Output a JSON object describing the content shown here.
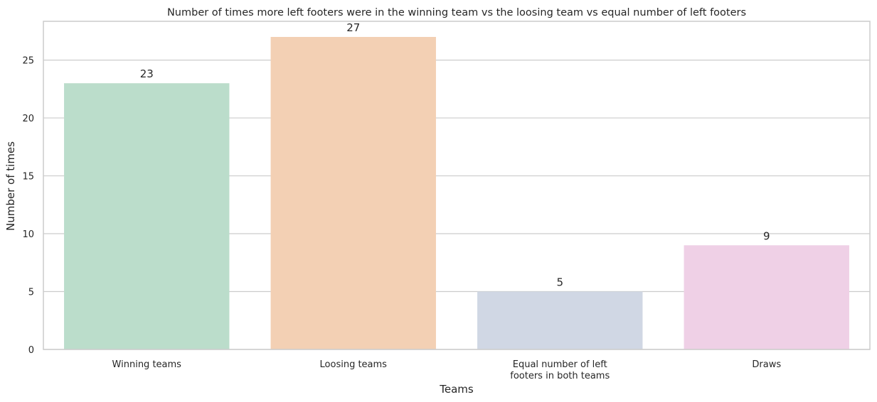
{
  "chart_data": {
    "type": "bar",
    "title": "Number of times more left footers were in the winning team vs the loosing team vs equal number of left footers",
    "xlabel": "Teams",
    "ylabel": "Number of times",
    "categories": [
      [
        "Winning teams"
      ],
      [
        "Loosing teams"
      ],
      [
        "Equal number of left",
        "footers in both teams"
      ],
      [
        "Draws"
      ]
    ],
    "values": [
      23,
      27,
      5,
      9
    ],
    "data_labels": [
      "23",
      "27",
      "5",
      "9"
    ],
    "ylim": [
      0,
      28.35
    ],
    "yticks": [
      0,
      5,
      10,
      15,
      20,
      25
    ],
    "ytick_labels": [
      "0",
      "5",
      "10",
      "15",
      "20",
      "25"
    ],
    "colors": [
      "#bbddcb",
      "#f3d0b4",
      "#d0d7e4",
      "#efd0e6"
    ],
    "grid": "horizontal",
    "legend": "none"
  }
}
